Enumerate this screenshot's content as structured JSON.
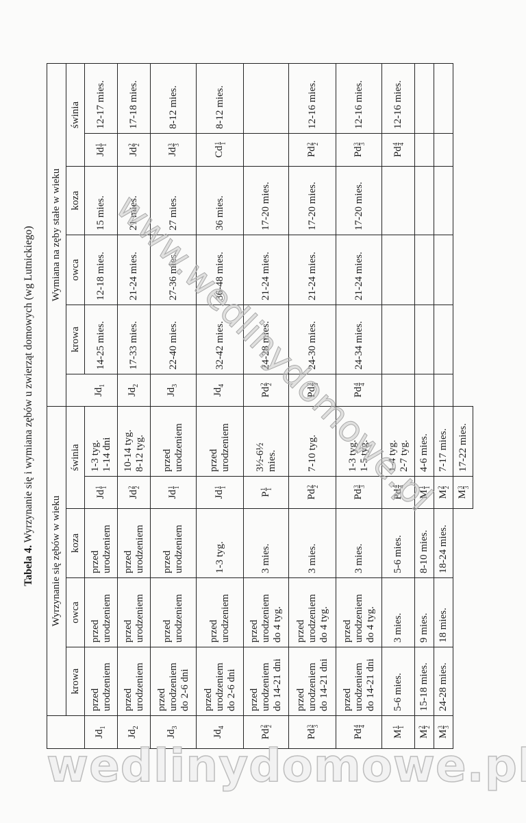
{
  "title": {
    "label": "Tabela 4.",
    "text": "Wyrzynanie się i wymiana zębów u zwierząt domowych (wg Lutnickiego)"
  },
  "header": {
    "eruption_group": "Wyrzynanie się zębów w wieku",
    "replacement_group": "Wymiana na zęby stałe w wieku",
    "eruption_cols": {
      "krowa": "krowa",
      "owca": "owca",
      "koza": "koza",
      "swinia": "świnia"
    },
    "replacement_cols": {
      "krowa": "krowa",
      "owca": "owca",
      "koza": "koza",
      "swinia": "świnia"
    }
  },
  "rows": [
    {
      "eruption": {
        "tooth": {
          "base": "Jd",
          "sup": "",
          "sub": "1"
        },
        "krowa": "przed\nurodzeniem",
        "owca": "przed\nurodzeniem",
        "koza": "przed\nurodzeniem",
        "swinia_tooth": {
          "base": "Jd",
          "sup": "1",
          "sub": "1"
        },
        "swinia": "1-3 tyg.\n1-14 dni"
      },
      "replacement": {
        "tooth": {
          "base": "Jd",
          "sup": "",
          "sub": "1"
        },
        "krowa": "14-25 mies.",
        "owca": "12-18 mies.",
        "koza": "15 mies.",
        "swinia_tooth": {
          "base": "Jd",
          "sup": "1",
          "sub": "1"
        },
        "swinia": "12-17 mies."
      }
    },
    {
      "eruption": {
        "tooth": {
          "base": "Jd",
          "sup": "",
          "sub": "2"
        },
        "krowa": "przed\nurodzeniem",
        "owca": "przed\nurodzeniem",
        "koza": "przed\nurodzeniem",
        "swinia_tooth": {
          "base": "Jd",
          "sup": "2",
          "sub": "2"
        },
        "swinia": "10-14 tyg.\n8-12 tyg."
      },
      "replacement": {
        "tooth": {
          "base": "Jd",
          "sup": "",
          "sub": "2"
        },
        "krowa": "17-33 mies.",
        "owca": "21-24 mies.",
        "koza": "21 mies.",
        "swinia_tooth": {
          "base": "Jd",
          "sup": "2",
          "sub": "2"
        },
        "swinia": "17-18 mies."
      }
    },
    {
      "eruption": {
        "tooth": {
          "base": "Jd",
          "sup": "",
          "sub": "3"
        },
        "krowa": "przed\nurodzeniem\ndo 2-6 dni",
        "owca": "przed\nurodzeniem",
        "koza": "przed\nurodzeniem",
        "swinia_tooth": {
          "base": "Jd",
          "sup": "1",
          "sub": "1"
        },
        "swinia": "przed\nurodzeniem"
      },
      "replacement": {
        "tooth": {
          "base": "Jd",
          "sup": "",
          "sub": "3"
        },
        "krowa": "22-40 mies.",
        "owca": "27-36 mies.",
        "koza": "27 mies.",
        "swinia_tooth": {
          "base": "Jd",
          "sup": "3",
          "sub": "3"
        },
        "swinia": "8-12 mies."
      }
    },
    {
      "eruption": {
        "tooth": {
          "base": "Jd",
          "sup": "",
          "sub": "4"
        },
        "krowa": "przed\nurodzeniem\ndo 2-6 dni",
        "owca": "przed\nurodzeniem",
        "koza": "1-3 tyg.",
        "swinia_tooth": {
          "base": "Jd",
          "sup": "1",
          "sub": "1"
        },
        "swinia": "przed\nurodzeniem"
      },
      "replacement": {
        "tooth": {
          "base": "Jd",
          "sup": "",
          "sub": "4"
        },
        "krowa": "32-42 mies.",
        "owca": "36-48 mies.",
        "koza": "36 mies.",
        "swinia_tooth": {
          "base": "Cd",
          "sup": "1",
          "sub": "1"
        },
        "swinia": "8-12 mies."
      }
    },
    {
      "eruption": {
        "tooth": {
          "base": "Pd",
          "sup": "2",
          "sub": "2"
        },
        "krowa": "przed\nurodzeniem\ndo 14-21 dni",
        "owca": "przed\nurodzeniem\ndo 4 tyg.",
        "koza": "3 mies.",
        "swinia_tooth": {
          "base": "P",
          "sup": "1",
          "sub": "1"
        },
        "swinia": "3½-6½\nmies."
      },
      "replacement": {
        "tooth": {
          "base": "Pd",
          "sup": "2",
          "sub": "2"
        },
        "krowa": "24-28 mies.",
        "owca": "21-24 mies.",
        "koza": "17-20 mies.",
        "swinia_tooth": {
          "base": "",
          "sup": "",
          "sub": ""
        },
        "swinia": ""
      }
    },
    {
      "eruption": {
        "tooth": {
          "base": "Pd",
          "sup": "3",
          "sub": "3"
        },
        "krowa": "przed\nurodzeniem\ndo 14-21 dni",
        "owca": "przed\nurodzeniem\ndo 4 tyg.",
        "koza": "3 mies.",
        "swinia_tooth": {
          "base": "Pd",
          "sup": "2",
          "sub": "2"
        },
        "swinia": "7-10 tyg."
      },
      "replacement": {
        "tooth": {
          "base": "Pd",
          "sup": "3",
          "sub": "3"
        },
        "krowa": "24-30 mies.",
        "owca": "21-24 mies.",
        "koza": "17-20 mies.",
        "swinia_tooth": {
          "base": "Pd",
          "sup": "2",
          "sub": "2"
        },
        "swinia": "12-16 mies."
      }
    },
    {
      "eruption": {
        "tooth": {
          "base": "Pd",
          "sup": "4",
          "sub": "4"
        },
        "krowa": "przed\nurodzeniem\ndo 14-21 dni",
        "owca": "przed\nurodzeniem\ndo 4 tyg.",
        "koza": "3 mies.",
        "swinia_tooth": {
          "base": "Pd",
          "sup": "3",
          "sub": "3"
        },
        "swinia": "1-3 tyg.\n1-5 tyg."
      },
      "replacement": {
        "tooth": {
          "base": "Pd",
          "sup": "4",
          "sub": "4"
        },
        "krowa": "24-34 mies.",
        "owca": "21-24 mies.",
        "koza": "17-20 mies.",
        "swinia_tooth": {
          "base": "Pd",
          "sup": "3",
          "sub": "3"
        },
        "swinia": "12-16 mies."
      }
    },
    {
      "eruption": {
        "tooth": {
          "base": "M",
          "sup": "1",
          "sub": "1"
        },
        "krowa": "5-6 mies.",
        "owca": "3 mies.",
        "koza": "5-6 mies.",
        "swinia_tooth": {
          "base": "Pd",
          "sup": "4",
          "sub": "4"
        },
        "swinia": "1-4 tyg.\n2-7 tyg."
      },
      "replacement": {
        "tooth": {
          "base": "",
          "sup": "",
          "sub": ""
        },
        "krowa": "",
        "owca": "",
        "koza": "",
        "swinia_tooth": {
          "base": "Pd",
          "sup": "4",
          "sub": "4"
        },
        "swinia": "12-16 mies."
      }
    },
    {
      "eruption": {
        "tooth": {
          "base": "M",
          "sup": "2",
          "sub": "2"
        },
        "krowa": "15-18 mies.",
        "owca": "9 mies.",
        "koza": "8-10 mies.",
        "swinia_tooth": {
          "base": "M",
          "sup": "1",
          "sub": "1"
        },
        "swinia": "4-6 mies."
      },
      "replacement": {
        "tooth": {
          "base": "",
          "sup": "",
          "sub": ""
        },
        "krowa": "",
        "owca": "",
        "koza": "",
        "swinia_tooth": {
          "base": "",
          "sup": "",
          "sub": ""
        },
        "swinia": ""
      }
    },
    {
      "eruption": {
        "tooth": {
          "base": "M",
          "sup": "3",
          "sub": "3"
        },
        "krowa": "24-28 mies.",
        "owca": "18 mies.",
        "koza": "18-24 mies.",
        "swinia_tooth": {
          "base": "M",
          "sup": "2",
          "sub": "2"
        },
        "swinia": "7-17 mies."
      },
      "replacement": {
        "tooth": {
          "base": "",
          "sup": "",
          "sub": ""
        },
        "krowa": "",
        "owca": "",
        "koza": "",
        "swinia_tooth": {
          "base": "",
          "sup": "",
          "sub": ""
        },
        "swinia": ""
      }
    },
    {
      "eruption": {
        "swinia_tooth": {
          "base": "M",
          "sup": "3",
          "sub": "3"
        },
        "swinia": "17-22 mies."
      }
    }
  ],
  "watermarks": {
    "bottom": "wedlinydomowe.pl",
    "diagonal": "www.wedlinydomowe.pl"
  }
}
